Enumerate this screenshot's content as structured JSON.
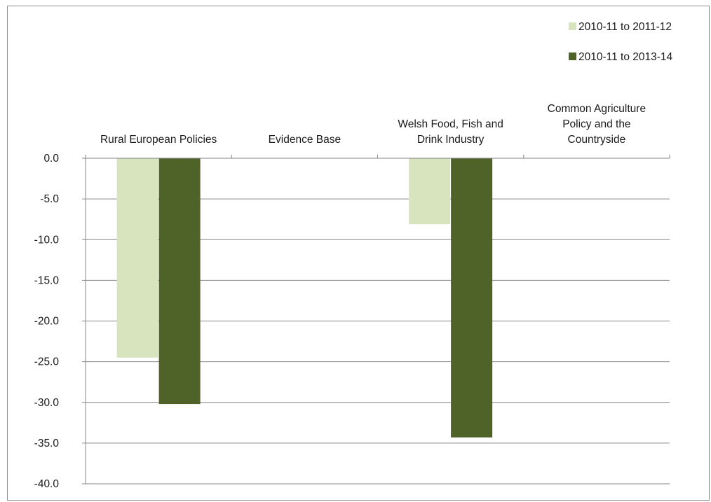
{
  "chart_data": {
    "type": "bar",
    "categories": [
      [
        "Rural European Policies"
      ],
      [
        "Evidence Base"
      ],
      [
        "Welsh Food, Fish and",
        "Drink Industry"
      ],
      [
        "Common Agriculture",
        "Policy and the",
        "Countryside"
      ]
    ],
    "series": [
      {
        "name": "2010-11 to 2011-12",
        "color": "#d7e4bd",
        "values": [
          -24.5,
          0,
          -8.1,
          0
        ]
      },
      {
        "name": "2010-11 to 2013-14",
        "color": "#4f6228",
        "values": [
          -30.2,
          0,
          -34.3,
          0
        ]
      }
    ],
    "yticks": [
      "0.0",
      "-5.0",
      "-10.0",
      "-15.0",
      "-20.0",
      "-25.0",
      "-30.0",
      "-35.0",
      "-40.0"
    ],
    "ylim": [
      -40,
      0
    ],
    "ystep": 5,
    "grid": true,
    "gridline_color": "#868686",
    "category_labels_position": "above-axis",
    "legend_position": "top-right",
    "title": "",
    "xlabel": "",
    "ylabel": ""
  }
}
